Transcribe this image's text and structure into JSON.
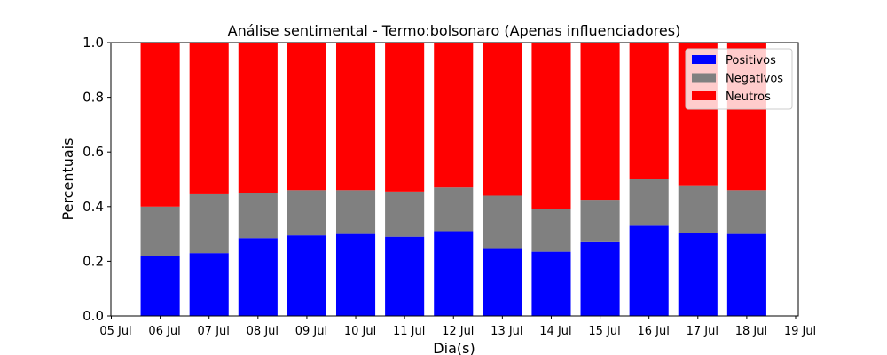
{
  "chart_data": {
    "type": "bar",
    "stacked": true,
    "title": "Análise sentimental - Termo:bolsonaro (Apenas influenciadores)",
    "xlabel": "Dia(s)",
    "ylabel": "Percentuais",
    "ylim": [
      0,
      1
    ],
    "y_ticks": [
      "0.0",
      "0.2",
      "0.4",
      "0.6",
      "0.8",
      "1.0"
    ],
    "x_ticks": [
      "05 Jul",
      "06 Jul",
      "07 Jul",
      "08 Jul",
      "09 Jul",
      "10 Jul",
      "11 Jul",
      "12 Jul",
      "13 Jul",
      "14 Jul",
      "15 Jul",
      "16 Jul",
      "17 Jul",
      "18 Jul",
      "19 Jul"
    ],
    "categories": [
      "06 Jul",
      "07 Jul",
      "08 Jul",
      "09 Jul",
      "10 Jul",
      "11 Jul",
      "12 Jul",
      "13 Jul",
      "14 Jul",
      "15 Jul",
      "16 Jul",
      "17 Jul",
      "18 Jul"
    ],
    "series": [
      {
        "name": "Positivos",
        "color": "#0000ff",
        "values": [
          0.22,
          0.23,
          0.285,
          0.295,
          0.3,
          0.29,
          0.31,
          0.245,
          0.235,
          0.27,
          0.33,
          0.305,
          0.3
        ]
      },
      {
        "name": "Negativos",
        "color": "#808080",
        "values": [
          0.18,
          0.215,
          0.165,
          0.165,
          0.16,
          0.165,
          0.16,
          0.195,
          0.155,
          0.155,
          0.17,
          0.17,
          0.16
        ]
      },
      {
        "name": "Neutros",
        "color": "#ff0000",
        "values": [
          0.6,
          0.555,
          0.55,
          0.54,
          0.54,
          0.545,
          0.53,
          0.56,
          0.61,
          0.575,
          0.5,
          0.525,
          0.54
        ]
      }
    ],
    "legend": {
      "position": "top-right"
    },
    "grid": false
  }
}
